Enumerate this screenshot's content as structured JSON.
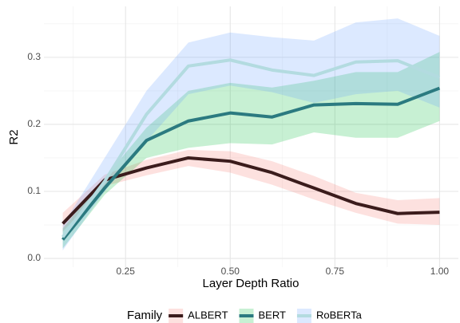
{
  "chart_data": {
    "type": "line",
    "xlabel": "Layer Depth Ratio",
    "ylabel": "R2",
    "legend_title": "Family",
    "legend": "bottom",
    "grid": true,
    "x": [
      0.1,
      0.2,
      0.3,
      0.4,
      0.5,
      0.6,
      0.7,
      0.8,
      0.9,
      1.0
    ],
    "xlim": [
      0.055,
      1.045
    ],
    "xticks": [
      {
        "value": 0.25,
        "label": "0.25"
      },
      {
        "value": 0.5,
        "label": "0.50"
      },
      {
        "value": 0.75,
        "label": "0.75"
      },
      {
        "value": 1.0,
        "label": "1.00"
      }
    ],
    "ylim": [
      -0.013,
      0.376
    ],
    "yticks": [
      {
        "value": 0,
        "label": "0.0"
      },
      0.1,
      0.2,
      0.3
    ],
    "series": [
      {
        "name": "ALBERT",
        "color": "#3b1c1c",
        "fill": "#f8766d",
        "values": [
          0.052,
          0.117,
          0.135,
          0.15,
          0.145,
          0.128,
          0.105,
          0.082,
          0.067,
          0.069
        ],
        "lower": [
          0.04,
          0.108,
          0.124,
          0.138,
          0.128,
          0.11,
          0.088,
          0.068,
          0.052,
          0.05
        ],
        "upper": [
          0.068,
          0.125,
          0.147,
          0.162,
          0.16,
          0.145,
          0.123,
          0.098,
          0.087,
          0.09
        ]
      },
      {
        "name": "BERT",
        "color": "#2b7a80",
        "fill": "#00ba38",
        "values": [
          0.028,
          0.105,
          0.176,
          0.205,
          0.217,
          0.211,
          0.229,
          0.231,
          0.23,
          0.254
        ],
        "lower": [
          0.015,
          0.095,
          0.15,
          0.165,
          0.172,
          0.17,
          0.188,
          0.18,
          0.18,
          0.205
        ],
        "upper": [
          0.045,
          0.12,
          0.195,
          0.25,
          0.262,
          0.255,
          0.265,
          0.278,
          0.278,
          0.308
        ]
      },
      {
        "name": "RoBERTa",
        "color": "#b3dbe0",
        "fill": "#619cff",
        "values": [
          0.032,
          0.115,
          0.215,
          0.287,
          0.296,
          0.281,
          0.273,
          0.293,
          0.295,
          0.27
        ],
        "lower": [
          0.012,
          0.1,
          0.175,
          0.245,
          0.258,
          0.248,
          0.232,
          0.245,
          0.25,
          0.225
        ],
        "upper": [
          0.05,
          0.15,
          0.25,
          0.322,
          0.337,
          0.33,
          0.325,
          0.352,
          0.358,
          0.332
        ]
      }
    ]
  }
}
